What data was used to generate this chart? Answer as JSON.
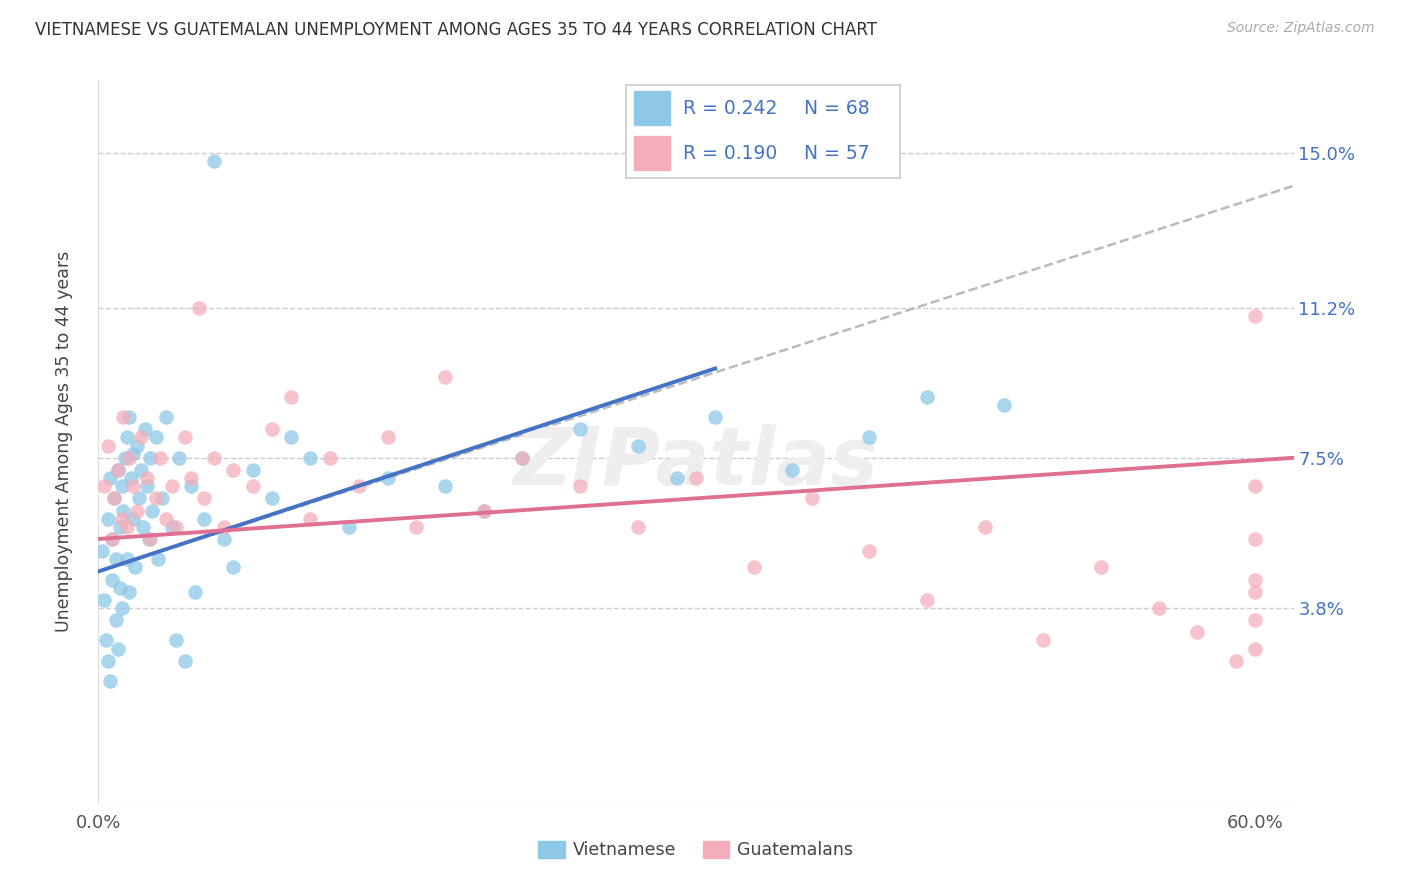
{
  "title": "VIETNAMESE VS GUATEMALAN UNEMPLOYMENT AMONG AGES 35 TO 44 YEARS CORRELATION CHART",
  "source": "Source: ZipAtlas.com",
  "ylabel": "Unemployment Among Ages 35 to 44 years",
  "xlim": [
    0.0,
    0.62
  ],
  "ylim": [
    -0.01,
    0.168
  ],
  "ytick_positions": [
    0.038,
    0.075,
    0.112,
    0.15
  ],
  "ytick_labels": [
    "3.8%",
    "7.5%",
    "11.2%",
    "15.0%"
  ],
  "color_blue": "#8DC8E8",
  "color_pink": "#F4AEBB",
  "color_blue_line": "#4472C4",
  "color_pink_line": "#E07090",
  "color_gray_dashed": "#BBBBBB",
  "legend_r1": "R = 0.242",
  "legend_n1": "N = 68",
  "legend_r2": "R = 0.190",
  "legend_n2": "N = 57",
  "blue_line_x": [
    0.0,
    0.32
  ],
  "blue_line_y": [
    0.047,
    0.097
  ],
  "gray_line_x": [
    0.0,
    0.62
  ],
  "gray_line_y": [
    0.047,
    0.142
  ],
  "pink_line_x": [
    0.0,
    0.62
  ],
  "pink_line_y": [
    0.055,
    0.075
  ],
  "viet_x": [
    0.002,
    0.003,
    0.004,
    0.005,
    0.005,
    0.006,
    0.006,
    0.007,
    0.007,
    0.008,
    0.009,
    0.009,
    0.01,
    0.01,
    0.011,
    0.011,
    0.012,
    0.012,
    0.013,
    0.014,
    0.015,
    0.015,
    0.016,
    0.016,
    0.017,
    0.018,
    0.018,
    0.019,
    0.02,
    0.021,
    0.022,
    0.023,
    0.024,
    0.025,
    0.026,
    0.027,
    0.028,
    0.03,
    0.031,
    0.033,
    0.035,
    0.038,
    0.04,
    0.042,
    0.045,
    0.048,
    0.05,
    0.055,
    0.06,
    0.065,
    0.07,
    0.08,
    0.09,
    0.1,
    0.11,
    0.13,
    0.15,
    0.18,
    0.2,
    0.22,
    0.25,
    0.28,
    0.3,
    0.32,
    0.36,
    0.4,
    0.43,
    0.47
  ],
  "viet_y": [
    0.052,
    0.04,
    0.03,
    0.06,
    0.025,
    0.07,
    0.02,
    0.055,
    0.045,
    0.065,
    0.05,
    0.035,
    0.072,
    0.028,
    0.058,
    0.043,
    0.068,
    0.038,
    0.062,
    0.075,
    0.08,
    0.05,
    0.085,
    0.042,
    0.07,
    0.076,
    0.06,
    0.048,
    0.078,
    0.065,
    0.072,
    0.058,
    0.082,
    0.068,
    0.055,
    0.075,
    0.062,
    0.08,
    0.05,
    0.065,
    0.085,
    0.058,
    0.03,
    0.075,
    0.025,
    0.068,
    0.042,
    0.06,
    0.148,
    0.055,
    0.048,
    0.072,
    0.065,
    0.08,
    0.075,
    0.058,
    0.07,
    0.068,
    0.062,
    0.075,
    0.082,
    0.078,
    0.07,
    0.085,
    0.072,
    0.08,
    0.09,
    0.088
  ],
  "guat_x": [
    0.003,
    0.005,
    0.007,
    0.008,
    0.01,
    0.012,
    0.013,
    0.015,
    0.016,
    0.018,
    0.02,
    0.022,
    0.025,
    0.027,
    0.03,
    0.032,
    0.035,
    0.038,
    0.04,
    0.045,
    0.048,
    0.052,
    0.055,
    0.06,
    0.065,
    0.07,
    0.08,
    0.09,
    0.1,
    0.11,
    0.12,
    0.135,
    0.15,
    0.165,
    0.18,
    0.2,
    0.22,
    0.25,
    0.28,
    0.31,
    0.34,
    0.37,
    0.4,
    0.43,
    0.46,
    0.49,
    0.52,
    0.55,
    0.57,
    0.59,
    0.6,
    0.6,
    0.6,
    0.6,
    0.6,
    0.6,
    0.6
  ],
  "guat_y": [
    0.068,
    0.078,
    0.055,
    0.065,
    0.072,
    0.06,
    0.085,
    0.058,
    0.075,
    0.068,
    0.062,
    0.08,
    0.07,
    0.055,
    0.065,
    0.075,
    0.06,
    0.068,
    0.058,
    0.08,
    0.07,
    0.112,
    0.065,
    0.075,
    0.058,
    0.072,
    0.068,
    0.082,
    0.09,
    0.06,
    0.075,
    0.068,
    0.08,
    0.058,
    0.095,
    0.062,
    0.075,
    0.068,
    0.058,
    0.07,
    0.048,
    0.065,
    0.052,
    0.04,
    0.058,
    0.03,
    0.048,
    0.038,
    0.032,
    0.025,
    0.11,
    0.068,
    0.045,
    0.035,
    0.055,
    0.028,
    0.042
  ]
}
